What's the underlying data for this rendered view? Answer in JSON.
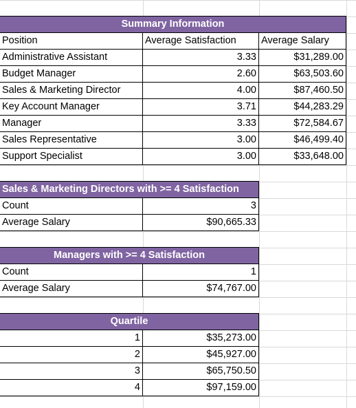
{
  "summary": {
    "title": "Summary Information",
    "headers": [
      "Position",
      "Average Satisfaction",
      "Average Salary"
    ],
    "rows": [
      {
        "position": "Administrative Assistant",
        "satisfaction": "3.33",
        "salary": "$31,289.00"
      },
      {
        "position": "Budget Manager",
        "satisfaction": "2.60",
        "salary": "$63,503.60"
      },
      {
        "position": "Sales & Marketing Director",
        "satisfaction": "4.00",
        "salary": "$87,460.50"
      },
      {
        "position": "Key Account Manager",
        "satisfaction": "3.71",
        "salary": "$44,283.29"
      },
      {
        "position": "Manager",
        "satisfaction": "3.33",
        "salary": "$72,584.67"
      },
      {
        "position": "Sales Representative",
        "satisfaction": "3.00",
        "salary": "$46,499.40"
      },
      {
        "position": "Support Specialist",
        "satisfaction": "3.00",
        "salary": "$33,648.00"
      }
    ]
  },
  "directors": {
    "title": "Sales & Marketing Directors with >= 4 Satisfaction",
    "count_label": "Count",
    "count_value": "3",
    "salary_label": "Average Salary",
    "salary_value": "$90,665.33"
  },
  "managers": {
    "title": "Managers with >= 4 Satisfaction",
    "count_label": "Count",
    "count_value": "1",
    "salary_label": "Average Salary",
    "salary_value": "$74,767.00"
  },
  "quartile": {
    "title": "Quartile",
    "rows": [
      {
        "index": "1",
        "value": "$35,273.00"
      },
      {
        "index": "2",
        "value": "$45,927.00"
      },
      {
        "index": "3",
        "value": "$65,750.50"
      },
      {
        "index": "4",
        "value": "$97,159.00"
      }
    ]
  },
  "colors": {
    "header_fill": "#8064a2",
    "header_text": "#ffffff",
    "grid": "#d9d9d9"
  }
}
